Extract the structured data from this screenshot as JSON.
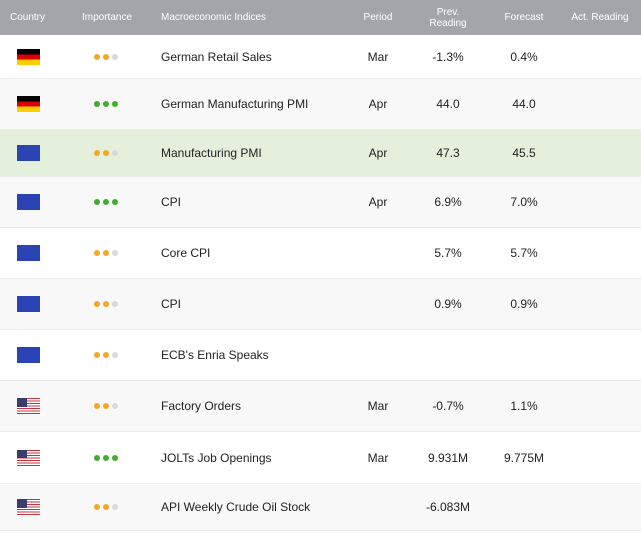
{
  "colors": {
    "header_bg": "#a3a5a8",
    "dot_medium": "#f5a623",
    "dot_high": "#3fae2a",
    "dot_empty": "#d9d9d9",
    "highlight_row": "#e4efdc",
    "alt_row": "#f8f8f8"
  },
  "header": {
    "country": "Country",
    "importance": "Importance",
    "indices": "Macroeconomic Indices",
    "period": "Period",
    "prev_line1": "Prev.",
    "prev_line2": "Reading",
    "forecast": "Forecast",
    "actual": "Act. Reading"
  },
  "rows": [
    {
      "flag": "de-flag",
      "importance": 2,
      "index": "German Retail Sales",
      "period": "Mar",
      "prev": "-1.3%",
      "forecast": "0.4%",
      "actual": ""
    },
    {
      "flag": "de-flag",
      "importance": 3,
      "index": "German Manufacturing PMI",
      "period": "Apr",
      "prev": "44.0",
      "forecast": "44.0",
      "actual": ""
    },
    {
      "flag": "eu-flag",
      "importance": 2,
      "index": "Manufacturing PMI",
      "period": "Apr",
      "prev": "47.3",
      "forecast": "45.5",
      "actual": ""
    },
    {
      "flag": "eu-flag",
      "importance": 3,
      "index": "CPI",
      "period": "Apr",
      "prev": "6.9%",
      "forecast": "7.0%",
      "actual": ""
    },
    {
      "flag": "eu-flag",
      "importance": 2,
      "index": "Core CPI",
      "period": "",
      "prev": "5.7%",
      "forecast": "5.7%",
      "actual": ""
    },
    {
      "flag": "eu-flag",
      "importance": 2,
      "index": "CPI",
      "period": "",
      "prev": "0.9%",
      "forecast": "0.9%",
      "actual": ""
    },
    {
      "flag": "eu-flag",
      "importance": 2,
      "index": "ECB's Enria Speaks",
      "period": "",
      "prev": "",
      "forecast": "",
      "actual": ""
    },
    {
      "flag": "us-flag",
      "importance": 2,
      "index": "Factory Orders",
      "period": "Mar",
      "prev": "-0.7%",
      "forecast": "1.1%",
      "actual": ""
    },
    {
      "flag": "us-flag",
      "importance": 3,
      "index": "JOLTs Job Openings",
      "period": "Mar",
      "prev": "9.931M",
      "forecast": "9.775M",
      "actual": ""
    },
    {
      "flag": "us-flag",
      "importance": 2,
      "index": "API Weekly Crude Oil Stock",
      "period": "",
      "prev": "-6.083M",
      "forecast": "",
      "actual": ""
    }
  ]
}
